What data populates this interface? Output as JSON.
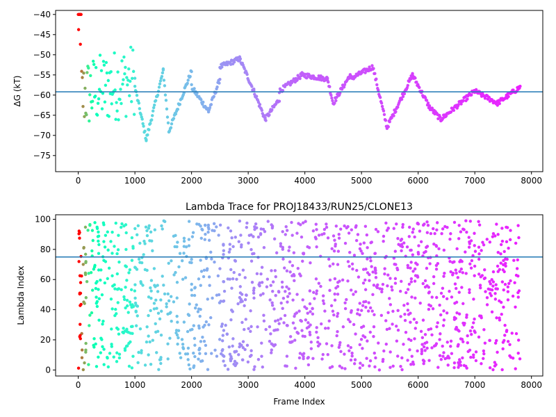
{
  "chart_data": [
    {
      "type": "scatter",
      "title": "",
      "xlabel": "",
      "ylabel": "ΔG (kT)",
      "xlim": [
        -400,
        8200
      ],
      "ylim": [
        -79,
        -39
      ],
      "xticks": [
        0,
        1000,
        2000,
        3000,
        4000,
        5000,
        6000,
        7000,
        8000
      ],
      "yticks": [
        -40,
        -45,
        -50,
        -55,
        -60,
        -65,
        -70,
        -75
      ],
      "hline": -59.2,
      "colormap": "rainbow",
      "color_by": "lambda",
      "grid": false,
      "segments": [
        {
          "x": [
            0,
            50
          ],
          "y": [
            -40,
            -42
          ]
        },
        {
          "x": [
            60,
            1000
          ],
          "y": [
            -60,
            -56
          ]
        },
        {
          "x": [
            1000,
            1200
          ],
          "y": [
            -58,
            -71
          ]
        },
        {
          "x": [
            1200,
            1500
          ],
          "y": [
            -71,
            -54
          ]
        },
        {
          "x": [
            1500,
            1600
          ],
          "y": [
            -54,
            -69
          ]
        },
        {
          "x": [
            1600,
            2000
          ],
          "y": [
            -69,
            -54
          ]
        },
        {
          "x": [
            2000,
            2300
          ],
          "y": [
            -58,
            -64
          ]
        },
        {
          "x": [
            2300,
            2500
          ],
          "y": [
            -64,
            -56
          ]
        },
        {
          "x": [
            2500,
            2850
          ],
          "y": [
            -53,
            -51
          ]
        },
        {
          "x": [
            2850,
            3100
          ],
          "y": [
            -51,
            -59
          ]
        },
        {
          "x": [
            3100,
            3300
          ],
          "y": [
            -59,
            -66
          ]
        },
        {
          "x": [
            3300,
            3550
          ],
          "y": [
            -66,
            -61
          ]
        },
        {
          "x": [
            3550,
            3950
          ],
          "y": [
            -59,
            -55
          ]
        },
        {
          "x": [
            3950,
            4400
          ],
          "y": [
            -55,
            -56
          ]
        },
        {
          "x": [
            4400,
            4500
          ],
          "y": [
            -56,
            -62
          ]
        },
        {
          "x": [
            4500,
            4800
          ],
          "y": [
            -62,
            -55
          ]
        },
        {
          "x": [
            4800,
            5200
          ],
          "y": [
            -56,
            -53
          ]
        },
        {
          "x": [
            5200,
            5450
          ],
          "y": [
            -53,
            -68
          ]
        },
        {
          "x": [
            5450,
            5900
          ],
          "y": [
            -68,
            -55
          ]
        },
        {
          "x": [
            5900,
            6200
          ],
          "y": [
            -55,
            -63
          ]
        },
        {
          "x": [
            6200,
            6400
          ],
          "y": [
            -63,
            -66
          ]
        },
        {
          "x": [
            6400,
            7000
          ],
          "y": [
            -66,
            -59
          ]
        },
        {
          "x": [
            7000,
            7400
          ],
          "y": [
            -59,
            -62
          ]
        },
        {
          "x": [
            7400,
            7800
          ],
          "y": [
            -62,
            -58
          ]
        }
      ]
    },
    {
      "type": "scatter",
      "title": "Lambda Trace for PROJ18433/RUN25/CLONE13",
      "xlabel": "Frame Index",
      "ylabel": "Lambda Index",
      "xlim": [
        -400,
        8200
      ],
      "ylim": [
        -4,
        103
      ],
      "xticks": [
        0,
        1000,
        2000,
        3000,
        4000,
        5000,
        6000,
        7000,
        8000
      ],
      "yticks": [
        0,
        20,
        40,
        60,
        80,
        100
      ],
      "hline": 75,
      "colormap": "rainbow",
      "color_by": "lambda",
      "grid": false,
      "x_max": 7800,
      "y_range": [
        0,
        99
      ]
    }
  ]
}
